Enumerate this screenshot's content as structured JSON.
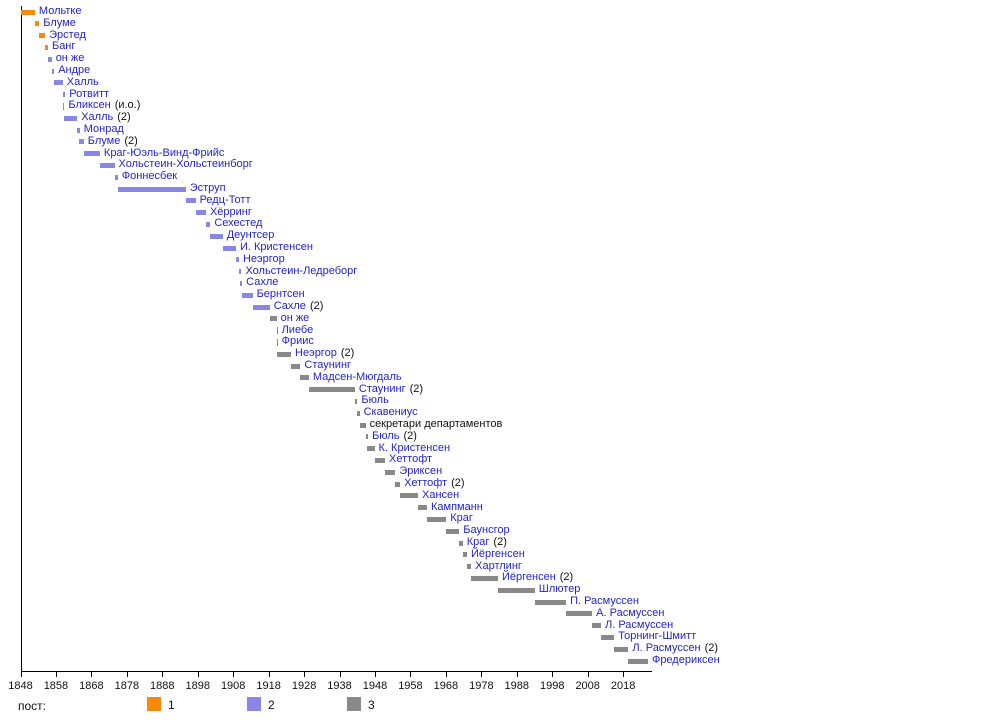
{
  "chart_data": {
    "type": "bar",
    "subtype": "gantt-timeline",
    "title": "",
    "xlabel": "",
    "ylabel": "",
    "grid": false,
    "x_axis": {
      "tick_years": [
        1848,
        1858,
        1868,
        1878,
        1888,
        1898,
        1908,
        1918,
        1928,
        1938,
        1948,
        1958,
        1968,
        1978,
        1988,
        1998,
        2008,
        2018
      ],
      "axis_start_year": 1848,
      "axis_end_year": 2026
    },
    "legend": {
      "label": "пост:",
      "position": "bottom",
      "items": [
        {
          "value": "1",
          "color": "#F8890A"
        },
        {
          "value": "2",
          "color": "#8787E8"
        },
        {
          "value": "3",
          "color": "#898989"
        }
      ]
    },
    "name_link_color": "#2424CC",
    "text_color": "#111111",
    "entries": [
      {
        "name": "Мольтке",
        "suffix": "",
        "post": 1,
        "start": 1848.22,
        "end": 1852.07,
        "link": true
      },
      {
        "name": "Блуме",
        "suffix": "",
        "post": 1,
        "start": 1852.07,
        "end": 1853.3,
        "link": true
      },
      {
        "name": "Эрстед",
        "suffix": "",
        "post": 1,
        "start": 1853.3,
        "end": 1854.95,
        "link": true
      },
      {
        "name": "Банг",
        "suffix": "",
        "post": 1,
        "start": 1854.95,
        "end": 1855.75,
        "link": true
      },
      {
        "name": "он же",
        "suffix": "",
        "post": 2,
        "start": 1855.75,
        "end": 1856.8,
        "link": true
      },
      {
        "name": "Андре",
        "suffix": "",
        "post": 2,
        "start": 1856.8,
        "end": 1857.36,
        "link": true
      },
      {
        "name": "Халль",
        "suffix": "",
        "post": 2,
        "start": 1857.36,
        "end": 1859.92,
        "link": true
      },
      {
        "name": "Ротвитт",
        "suffix": "",
        "post": 2,
        "start": 1859.92,
        "end": 1860.1,
        "link": true
      },
      {
        "name": "Бликсен",
        "suffix": "(и.о.)",
        "post": 2,
        "start": 1860.1,
        "end": 1860.15,
        "link": true
      },
      {
        "name": "Халль",
        "suffix": "(2)",
        "post": 2,
        "start": 1860.15,
        "end": 1864.0,
        "link": true
      },
      {
        "name": "Монрад",
        "suffix": "",
        "post": 2,
        "start": 1864.0,
        "end": 1864.53,
        "link": true
      },
      {
        "name": "Блуме",
        "suffix": "(2)",
        "post": 2,
        "start": 1864.53,
        "end": 1865.85,
        "link": true
      },
      {
        "name": "Краг-Юэль-Винд-Фрийс",
        "suffix": "",
        "post": 2,
        "start": 1865.85,
        "end": 1870.4,
        "link": true
      },
      {
        "name": "Хольстеин-Хольстеинборг",
        "suffix": "",
        "post": 2,
        "start": 1870.4,
        "end": 1874.53,
        "link": true
      },
      {
        "name": "Фоннесбек",
        "suffix": "",
        "post": 2,
        "start": 1874.53,
        "end": 1875.44,
        "link": true
      },
      {
        "name": "Эструп",
        "suffix": "",
        "post": 2,
        "start": 1875.44,
        "end": 1894.6,
        "link": true
      },
      {
        "name": "Редц-Тотт",
        "suffix": "",
        "post": 2,
        "start": 1894.6,
        "end": 1897.39,
        "link": true
      },
      {
        "name": "Хёрринг",
        "suffix": "",
        "post": 2,
        "start": 1897.39,
        "end": 1900.32,
        "link": true
      },
      {
        "name": "Сехестед",
        "suffix": "",
        "post": 2,
        "start": 1900.32,
        "end": 1901.56,
        "link": true
      },
      {
        "name": "Деунтсер",
        "suffix": "",
        "post": 2,
        "start": 1901.56,
        "end": 1905.04,
        "link": true
      },
      {
        "name": "И. Кристенсен",
        "suffix": "",
        "post": 2,
        "start": 1905.04,
        "end": 1908.78,
        "link": true
      },
      {
        "name": "Неэргор",
        "suffix": "",
        "post": 2,
        "start": 1908.78,
        "end": 1909.62,
        "link": true
      },
      {
        "name": "Хольстеин-Ледреборг",
        "suffix": "",
        "post": 2,
        "start": 1909.62,
        "end": 1909.82,
        "link": true
      },
      {
        "name": "Сахле",
        "suffix": "",
        "post": 2,
        "start": 1909.82,
        "end": 1910.51,
        "link": true
      },
      {
        "name": "Бернтсен",
        "suffix": "",
        "post": 2,
        "start": 1910.51,
        "end": 1913.47,
        "link": true
      },
      {
        "name": "Сахле",
        "suffix": "(2)",
        "post": 2,
        "start": 1913.47,
        "end": 1918.3,
        "link": true
      },
      {
        "name": "он же",
        "suffix": "",
        "post": 3,
        "start": 1918.3,
        "end": 1920.24,
        "link": true
      },
      {
        "name": "Лиебе",
        "suffix": "",
        "post": 3,
        "start": 1920.24,
        "end": 1920.26,
        "link": true
      },
      {
        "name": "Фриис",
        "suffix": "",
        "post": 3,
        "start": 1920.26,
        "end": 1920.34,
        "link": true
      },
      {
        "name": "Неэргор",
        "suffix": "(2)",
        "post": 3,
        "start": 1920.34,
        "end": 1924.31,
        "link": true
      },
      {
        "name": "Стаунинг",
        "suffix": "",
        "post": 3,
        "start": 1924.31,
        "end": 1926.95,
        "link": true
      },
      {
        "name": "Мадсен-Мюгдаль",
        "suffix": "",
        "post": 3,
        "start": 1926.95,
        "end": 1929.33,
        "link": true
      },
      {
        "name": "Стаунинг",
        "suffix": "(2)",
        "post": 3,
        "start": 1929.33,
        "end": 1942.34,
        "link": true
      },
      {
        "name": "Бюль",
        "suffix": "",
        "post": 3,
        "start": 1942.34,
        "end": 1942.85,
        "link": true
      },
      {
        "name": "Скавениус",
        "suffix": "",
        "post": 3,
        "start": 1942.85,
        "end": 1943.66,
        "link": true
      },
      {
        "name": "секретари департаментов",
        "suffix": "",
        "post": 3,
        "start": 1943.66,
        "end": 1945.34,
        "link": false
      },
      {
        "name": "Бюль",
        "suffix": "(2)",
        "post": 3,
        "start": 1945.34,
        "end": 1945.85,
        "link": true
      },
      {
        "name": "К. Кристенсен",
        "suffix": "",
        "post": 3,
        "start": 1945.85,
        "end": 1947.87,
        "link": true
      },
      {
        "name": "Хеттофт",
        "suffix": "",
        "post": 3,
        "start": 1947.87,
        "end": 1950.83,
        "link": true
      },
      {
        "name": "Эриксен",
        "suffix": "",
        "post": 3,
        "start": 1950.83,
        "end": 1953.75,
        "link": true
      },
      {
        "name": "Хеттофт",
        "suffix": "(2)",
        "post": 3,
        "start": 1953.75,
        "end": 1955.08,
        "link": true
      },
      {
        "name": "Хансен",
        "suffix": "",
        "post": 3,
        "start": 1955.08,
        "end": 1960.14,
        "link": true
      },
      {
        "name": "Кампманн",
        "suffix": "",
        "post": 3,
        "start": 1960.14,
        "end": 1962.67,
        "link": true
      },
      {
        "name": "Краг",
        "suffix": "",
        "post": 3,
        "start": 1962.67,
        "end": 1968.09,
        "link": true
      },
      {
        "name": "Баунсгор",
        "suffix": "",
        "post": 3,
        "start": 1968.09,
        "end": 1971.78,
        "link": true
      },
      {
        "name": "Краг",
        "suffix": "(2)",
        "post": 3,
        "start": 1971.78,
        "end": 1972.76,
        "link": true
      },
      {
        "name": "Йёргенсен",
        "suffix": "",
        "post": 3,
        "start": 1972.76,
        "end": 1973.96,
        "link": true
      },
      {
        "name": "Хартлинг",
        "suffix": "",
        "post": 3,
        "start": 1973.96,
        "end": 1975.12,
        "link": true
      },
      {
        "name": "Йёргенсен",
        "suffix": "(2)",
        "post": 3,
        "start": 1975.12,
        "end": 1982.69,
        "link": true
      },
      {
        "name": "Шлютер",
        "suffix": "",
        "post": 3,
        "start": 1982.69,
        "end": 1993.07,
        "link": true
      },
      {
        "name": "П. Расмуссен",
        "suffix": "",
        "post": 3,
        "start": 1993.07,
        "end": 2001.9,
        "link": true
      },
      {
        "name": "А. Расмуссен",
        "suffix": "",
        "post": 3,
        "start": 2001.9,
        "end": 2009.26,
        "link": true
      },
      {
        "name": "Л. Расмуссен",
        "suffix": "",
        "post": 3,
        "start": 2009.26,
        "end": 2011.75,
        "link": true
      },
      {
        "name": "Торнинг-Шмитт",
        "suffix": "",
        "post": 3,
        "start": 2011.75,
        "end": 2015.49,
        "link": true
      },
      {
        "name": "Л. Расмуссен",
        "suffix": "(2)",
        "post": 3,
        "start": 2015.49,
        "end": 2019.48,
        "link": true
      },
      {
        "name": "Фредериксен",
        "suffix": "",
        "post": 3,
        "start": 2019.48,
        "end": 2025.0,
        "link": true
      }
    ]
  }
}
